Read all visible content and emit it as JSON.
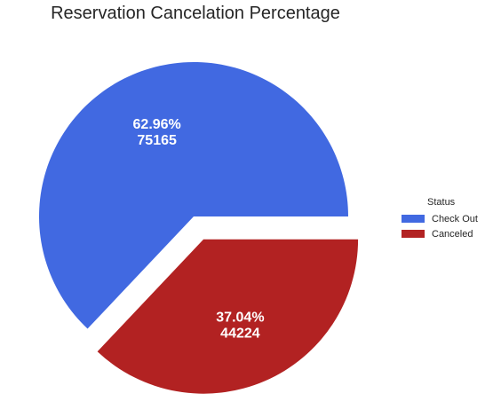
{
  "chart_data": {
    "type": "pie",
    "title": "Reservation Cancelation Percentage",
    "categories": [
      "Check Out",
      "Canceled"
    ],
    "values": [
      75165,
      44224
    ],
    "percent_labels": [
      "62.96%",
      "37.04%"
    ],
    "value_labels": [
      "75165",
      "44224"
    ],
    "colors": [
      "#4169e1",
      "#b22222"
    ],
    "exploded": [
      false,
      true
    ],
    "legend": {
      "title": "Status",
      "placement": "right"
    }
  }
}
